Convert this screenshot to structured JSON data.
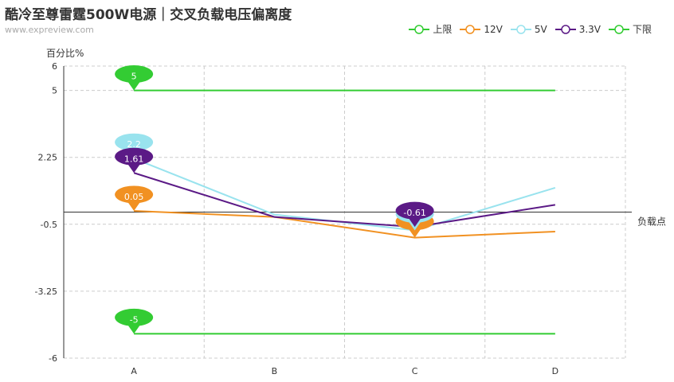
{
  "title": "酷冷至尊雷霆500W电源｜交叉负载电压偏离度",
  "subtitle": "www.expreview.com",
  "chart_data": {
    "type": "line",
    "title": "酷冷至尊雷霆500W电源｜交叉负载电压偏离度",
    "xlabel": "负载点",
    "ylabel": "百分比%",
    "categories": [
      "A",
      "B",
      "C",
      "D"
    ],
    "ylim": [
      -6,
      6
    ],
    "yticks": [
      6,
      5,
      2.25,
      -0.5,
      -3.25,
      -6
    ],
    "ytick_labels": [
      "6",
      "5",
      "2.25",
      "-0.5",
      "-3.25",
      "-6"
    ],
    "grid": true,
    "legend_position": "top-right",
    "series": [
      {
        "name": "上限",
        "color": "#33cc33",
        "values": [
          5,
          5,
          5,
          5
        ],
        "label_index": 0,
        "label": "5"
      },
      {
        "name": "12V",
        "color": "#f19122",
        "values": [
          0.05,
          -0.2,
          -1.05,
          -0.8
        ],
        "label_index": 0,
        "label": "0.05"
      },
      {
        "name": "5V",
        "color": "#99e3ee",
        "values": [
          2.2,
          -0.1,
          -0.75,
          1.0
        ],
        "label_index": 0,
        "label": "2.2"
      },
      {
        "name": "3.3V",
        "color": "#5b1a86",
        "values": [
          1.61,
          -0.2,
          -0.61,
          0.3
        ],
        "label_index": 0,
        "label": "1.61"
      },
      {
        "name": "下限",
        "color": "#33cc33",
        "values": [
          -5,
          -5,
          -5,
          -5
        ],
        "label_index": 0,
        "label": "-5"
      }
    ],
    "extra_labels": [
      {
        "series": "12V",
        "index": 2,
        "label": ""
      },
      {
        "series": "5V",
        "index": 2,
        "label": ""
      },
      {
        "series": "3.3V",
        "index": 2,
        "label": "-0.61"
      }
    ]
  }
}
